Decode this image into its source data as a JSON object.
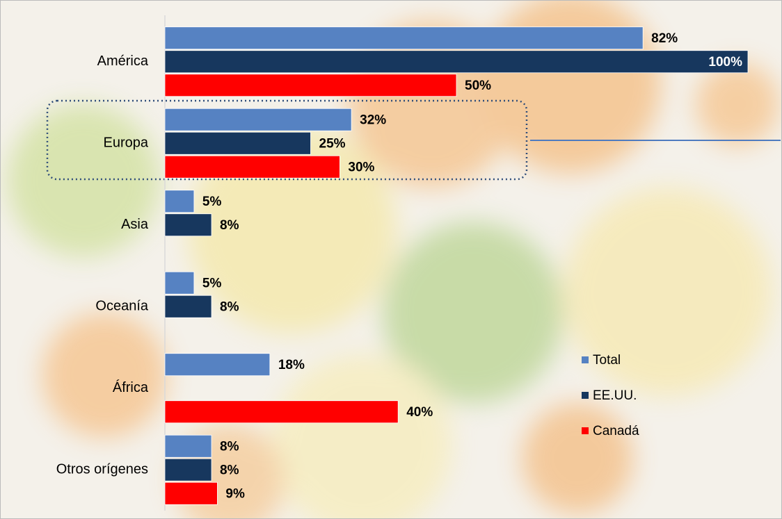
{
  "chart_data": {
    "type": "bar",
    "orientation": "horizontal",
    "categories": [
      "América",
      "Europa",
      "Asia",
      "Oceanía",
      "África",
      "Otros orígenes"
    ],
    "xlim": [
      0,
      100
    ],
    "series": [
      {
        "name": "Total",
        "color": "#5682c2",
        "values": [
          82,
          32,
          5,
          5,
          18,
          8
        ],
        "value_labels": [
          "82%",
          "32%",
          "5%",
          "5%",
          "18%",
          "8%"
        ]
      },
      {
        "name": "EE.UU.",
        "color": "#17375e",
        "values": [
          100,
          25,
          8,
          8,
          null,
          8
        ],
        "value_labels": [
          "100%",
          "25%",
          "8%",
          "8%",
          null,
          "8%"
        ]
      },
      {
        "name": "Canadá",
        "color": "#ff0000",
        "values": [
          50,
          30,
          null,
          null,
          40,
          9
        ],
        "value_labels": [
          "50%",
          "30%",
          null,
          null,
          "40%",
          "9%"
        ]
      }
    ],
    "legend": "right"
  }
}
